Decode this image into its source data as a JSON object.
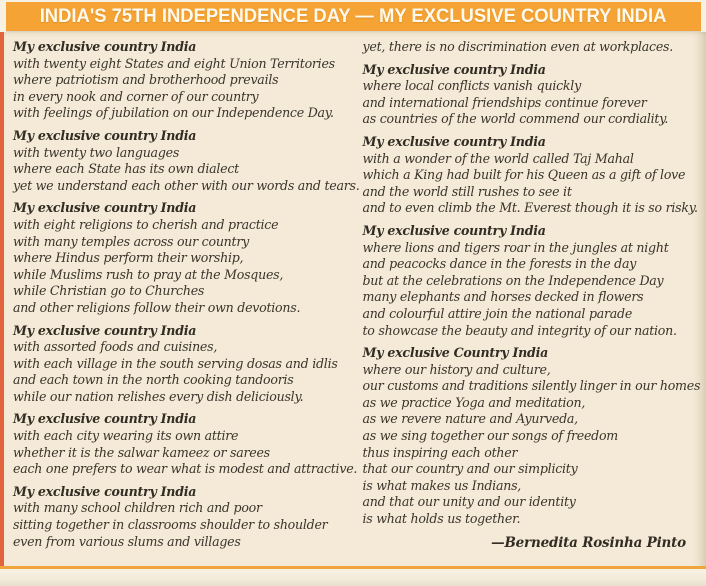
{
  "header": {
    "title": "INDIA'S 75TH INDEPENDENCE DAY — MY EXCLUSIVE COUNTRY INDIA"
  },
  "poem": {
    "columns": [
      {
        "side": "left",
        "stanzas": [
          {
            "heading": "My exclusive country India",
            "lines": [
              "with twenty eight States and eight Union Territories",
              "where patriotism and brotherhood prevails",
              "in every nook and corner of our country",
              "with feelings of jubilation on our Independence Day."
            ]
          },
          {
            "heading": "My exclusive country India",
            "lines": [
              "with twenty two languages",
              "where each State has its own dialect",
              "yet we understand each other with our words and tears."
            ]
          },
          {
            "heading": "My exclusive country India",
            "lines": [
              "with eight religions to cherish and practice",
              "with many temples across our country",
              "where Hindus  perform their worship,",
              "while Muslims rush to pray at the Mosques,",
              "while Christian go to Churches",
              "and other religions follow their own devotions."
            ]
          },
          {
            "heading": "My exclusive country India",
            "lines": [
              "with assorted foods and cuisines,",
              "with each village in the south serving dosas and idlis",
              "and each town in the north cooking tandooris",
              "while our nation relishes every dish deliciously."
            ]
          },
          {
            "heading": "My exclusive country India",
            "lines": [
              "with each city wearing its own attire",
              "whether it is the salwar kameez  or sarees",
              "each one prefers to wear what is  modest and attractive."
            ]
          },
          {
            "heading": "My exclusive country India",
            "lines": [
              "with many school children rich and poor",
              "sitting together  in classrooms shoulder to shoulder",
              "even from various slums and villages"
            ]
          }
        ]
      },
      {
        "side": "right",
        "lead_line": "yet, there is no discrimination even at workplaces.",
        "stanzas": [
          {
            "heading": "My exclusive country India",
            "lines": [
              "where local conflicts vanish quickly",
              "and international friendships continue forever",
              "as countries of the world commend our cordiality."
            ]
          },
          {
            "heading": "My exclusive country India",
            "lines": [
              "with a wonder of the world called Taj Mahal",
              "which a King had built for his Queen as a gift of love",
              "and the world still rushes to see it",
              "and to even climb the Mt. Everest though it is so risky."
            ]
          },
          {
            "heading": "My exclusive country India",
            "lines": [
              "where lions and tigers roar in the jungles at night",
              "and peacocks dance in the forests in the day",
              "but at the celebrations on the Independence Day",
              "many elephants and horses decked in flowers",
              "and colourful attire join the national parade",
              "to showcase the beauty and integrity of our nation."
            ]
          },
          {
            "heading": "My exclusive Country India",
            "lines": [
              "where our history and culture,",
              "our customs and traditions silently linger in our homes",
              "as we practice Yoga and meditation,",
              "as we revere nature and Ayurveda,",
              "as we sing together our songs of freedom",
              "thus inspiring each other",
              "that our country and our simplicity",
              "is what makes us Indians,",
              "and that our unity and our identity",
              "is what holds us together."
            ]
          }
        ],
        "byline": "—Bernedita Rosinha Pinto"
      }
    ]
  },
  "colors": {
    "header_bg": "#f5a334",
    "header_text": "#fdf9ec",
    "body_bg": "#f4ead7",
    "accent_border": "#e0643e",
    "bottom_rule": "#efa43c",
    "text": "#3a342b"
  }
}
